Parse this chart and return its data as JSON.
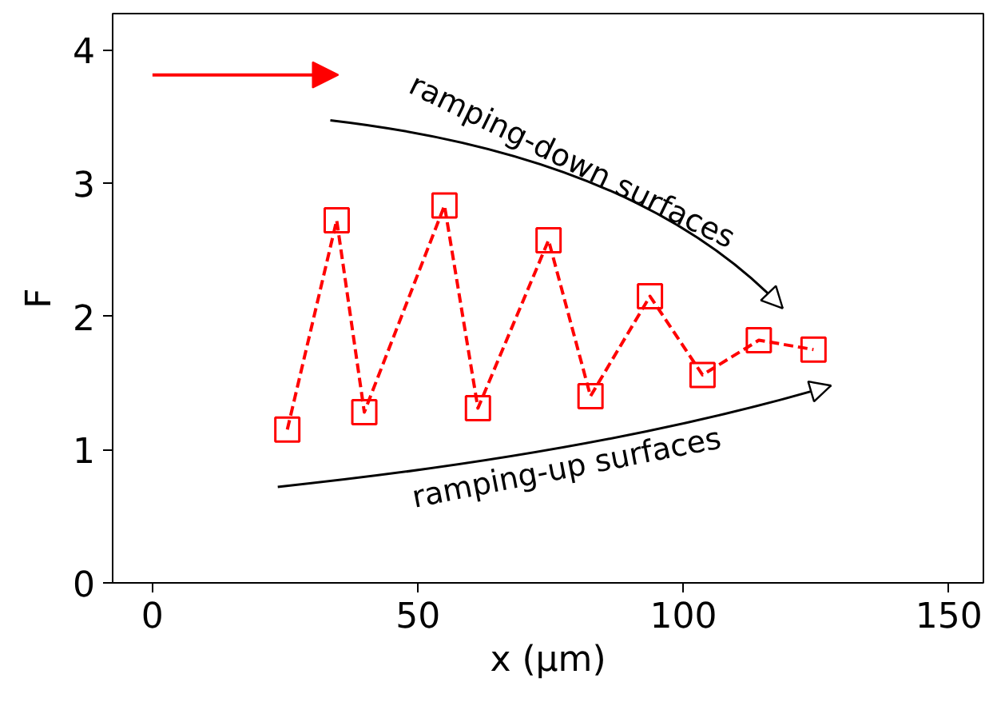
{
  "chart_data": {
    "type": "line",
    "xlabel": "x (µm)",
    "ylabel": "F",
    "x": [
      25.4,
      34.7,
      39.9,
      55.0,
      61.3,
      74.6,
      82.5,
      93.7,
      103.6,
      114.2,
      124.5
    ],
    "series": [
      {
        "color": "#ff0000",
        "values": [
          1.15,
          2.72,
          1.28,
          2.83,
          1.31,
          2.57,
          1.4,
          2.15,
          1.56,
          1.82,
          1.75
        ]
      }
    ],
    "marker": "square",
    "line_style": "dashed",
    "xlim": [
      -7.5,
      156.5
    ],
    "ylim": [
      0,
      4.27
    ],
    "xticks": [
      0,
      50,
      100,
      150
    ],
    "yticks": [
      0,
      1,
      2,
      3,
      4
    ],
    "grid": false,
    "annotations": [
      "ramping-down surfaces",
      "ramping-up surfaces"
    ]
  }
}
